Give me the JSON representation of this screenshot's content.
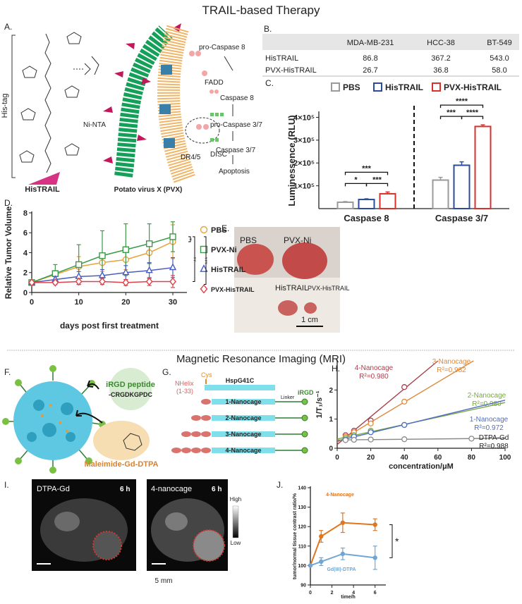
{
  "title": "TRAIL-based Therapy",
  "section_title": "Magnetic Resonance Imaging (MRI)",
  "panel_labels": [
    "A.",
    "B.",
    "C.",
    "D.",
    "E.",
    "F.",
    "G.",
    "H.",
    "I.",
    "J."
  ],
  "panel_a": {
    "his_tag": "His-tag",
    "ligand": "HisTRAIL",
    "linker": "Ni-NTA",
    "virus": "Potato virus X (PVX)",
    "receptor": "DR4/5",
    "complex": "DISC",
    "adaptor": "FADD",
    "cascade": [
      "pro-Caspase 8",
      "Caspase 8",
      "pro-Caspase 3/7",
      "Caspase 3/7",
      "Apoptosis"
    ]
  },
  "table_b": {
    "header": [
      "MDA-MB-231",
      "HCC-38",
      "BT-549"
    ],
    "rows": [
      [
        "HisTRAIL",
        "86.8",
        "367.2",
        "543.0"
      ],
      [
        "PVX-HisTRAIL",
        "26.7",
        "36.8",
        "58.0"
      ]
    ]
  },
  "panel_e": {
    "labels": [
      "PBS",
      "PVX-Ni",
      "HisTRAIL",
      "PVX-HisTRAIL"
    ],
    "scale_bar": "1 cm"
  },
  "panel_f": {
    "peptide": "iRGD peptide",
    "sequence": "-CRGDKGPDC",
    "agent": "Maleimide-Gd-DTPA"
  },
  "panel_g": {
    "helix": "NHelix",
    "helix_range": "(1-33)",
    "cys": "Cys",
    "protein": "HspG41C",
    "linker": "Linker",
    "peptide": "iRGD",
    "constructs": [
      "1-Nanocage",
      "2-Nanocage",
      "3-Nanocage",
      "4-Nanocage"
    ]
  },
  "panel_i": {
    "images": [
      {
        "label": "DTPA-Gd",
        "time": "6 h"
      },
      {
        "label": "4-nanocage",
        "time": "6 h"
      }
    ],
    "scale_high": "High",
    "scale_low": "Low",
    "scale_bar": "5 mm"
  },
  "chart_data": [
    {
      "type": "bar",
      "ylabel": "Luminessence (RLU)",
      "categories": [
        "Caspase 8",
        "Caspase 3/7"
      ],
      "series": [
        {
          "name": "PBS",
          "color": "#9a9a9a",
          "values": [
            28000,
            125000
          ],
          "errors": [
            3000,
            12000
          ]
        },
        {
          "name": "HisTRAIL",
          "color": "#2b4c9b",
          "values": [
            40000,
            190000
          ],
          "errors": [
            3000,
            15000
          ]
        },
        {
          "name": "PVX-HisTRAIL",
          "color": "#d8312c",
          "values": [
            65000,
            360000
          ],
          "errors": [
            8000,
            7000
          ]
        }
      ],
      "ylim": [
        0,
        420000
      ],
      "yticks": [
        {
          "value": 100000,
          "label": "1×10⁵"
        },
        {
          "value": 200000,
          "label": "2×10⁵"
        },
        {
          "value": 300000,
          "label": "3×10⁵"
        },
        {
          "value": 400000,
          "label": "4×10⁵"
        }
      ],
      "annotations": [
        "*",
        "***",
        "***",
        "***",
        "****",
        "****"
      ],
      "legend": "top"
    },
    {
      "type": "line",
      "xlabel": "days post first treatment",
      "ylabel": "Relative Tumor Volume",
      "x": [
        0,
        5,
        10,
        15,
        20,
        25,
        30
      ],
      "series": [
        {
          "name": "PBS",
          "color": "#e8a23a",
          "marker": "circle",
          "values": [
            1,
            1.8,
            2.6,
            3.0,
            3.3,
            4.0,
            5.1
          ],
          "errors": [
            0,
            0.4,
            1.0,
            0.9,
            1.0,
            1.0,
            1.7
          ]
        },
        {
          "name": "PVX-Ni",
          "color": "#3a9a4a",
          "marker": "square",
          "values": [
            1,
            1.9,
            2.8,
            3.7,
            4.3,
            4.9,
            5.6
          ],
          "errors": [
            0,
            0.9,
            2.0,
            2.5,
            2.6,
            2.0,
            1.5
          ]
        },
        {
          "name": "HisTRAIL",
          "color": "#4a5cc0",
          "marker": "triangle",
          "values": [
            1,
            1.3,
            1.6,
            1.7,
            2.0,
            2.2,
            2.5
          ],
          "errors": [
            0,
            0.3,
            0.5,
            0.6,
            0.7,
            0.8,
            1.0
          ]
        },
        {
          "name": "PVX-HisTRAIL",
          "color": "#e0404a",
          "marker": "diamond",
          "values": [
            1,
            1.0,
            1.1,
            1.1,
            1.0,
            1.1,
            1.1
          ],
          "errors": [
            0,
            0.2,
            0.3,
            0.3,
            0.3,
            0.4,
            0.6
          ]
        }
      ],
      "xlim": [
        0,
        33
      ],
      "xticks": [
        0,
        10,
        20,
        30
      ],
      "ylim": [
        0,
        8
      ],
      "yticks": [
        0,
        2,
        4,
        6,
        8
      ],
      "annotations": [
        "*",
        "**",
        "***"
      ],
      "legend": "right"
    },
    {
      "type": "scatter",
      "xlabel": "concentration/μM",
      "ylabel": "1/T₁/s⁻¹",
      "series": [
        {
          "name": "4-Nanocage",
          "fit_label": "R²=0.980",
          "color": "#a8404e",
          "x": [
            5,
            10,
            20,
            40
          ],
          "values": [
            0.45,
            0.6,
            0.95,
            2.1
          ]
        },
        {
          "name": "3-Nanocage",
          "fit_label": "R²=0.982",
          "color": "#e0893a",
          "x": [
            5,
            10,
            20,
            40
          ],
          "values": [
            0.4,
            0.55,
            0.85,
            1.6
          ]
        },
        {
          "name": "2-Nanocage",
          "fit_label": "R²=0.980",
          "color": "#79a843",
          "x": [
            5,
            10,
            20,
            40
          ],
          "values": [
            0.35,
            0.45,
            0.6,
            0.8
          ]
        },
        {
          "name": "1-Nanocage",
          "fit_label": "R²=0.972",
          "color": "#4f6fc2",
          "x": [
            5,
            10,
            20,
            40
          ],
          "values": [
            0.3,
            0.4,
            0.55,
            0.8
          ]
        },
        {
          "name": "DTPA-Gd",
          "fit_label": "R²=0.988",
          "color": "#8a8a8a",
          "x": [
            5,
            10,
            20,
            40,
            80
          ],
          "values": [
            0.28,
            0.29,
            0.3,
            0.31,
            0.33
          ]
        }
      ],
      "xlim": [
        0,
        100
      ],
      "xticks": [
        0,
        20,
        40,
        60,
        80,
        100
      ],
      "ylim": [
        0,
        3
      ],
      "yticks": [
        0,
        1,
        2
      ]
    },
    {
      "type": "line",
      "xlabel": "time/h",
      "ylabel": "tumor/normal tissue contrast ratio/%",
      "x": [
        0,
        1,
        3,
        6
      ],
      "series": [
        {
          "name": "4-Nanocage",
          "color": "#e0761f",
          "marker": "dot",
          "values": [
            100,
            115,
            122,
            121
          ],
          "errors": [
            0,
            3,
            5,
            3
          ]
        },
        {
          "name": "Gd(III)-DTPA",
          "color": "#6fa6d6",
          "marker": "dot",
          "values": [
            100,
            102,
            106,
            104
          ],
          "errors": [
            0,
            2,
            3,
            6
          ]
        }
      ],
      "xlim": [
        0,
        7
      ],
      "xticks": [
        0,
        2,
        4,
        6
      ],
      "ylim": [
        90,
        140
      ],
      "yticks": [
        90,
        100,
        110,
        120,
        130,
        140
      ],
      "annotations": [
        "*"
      ]
    }
  ]
}
